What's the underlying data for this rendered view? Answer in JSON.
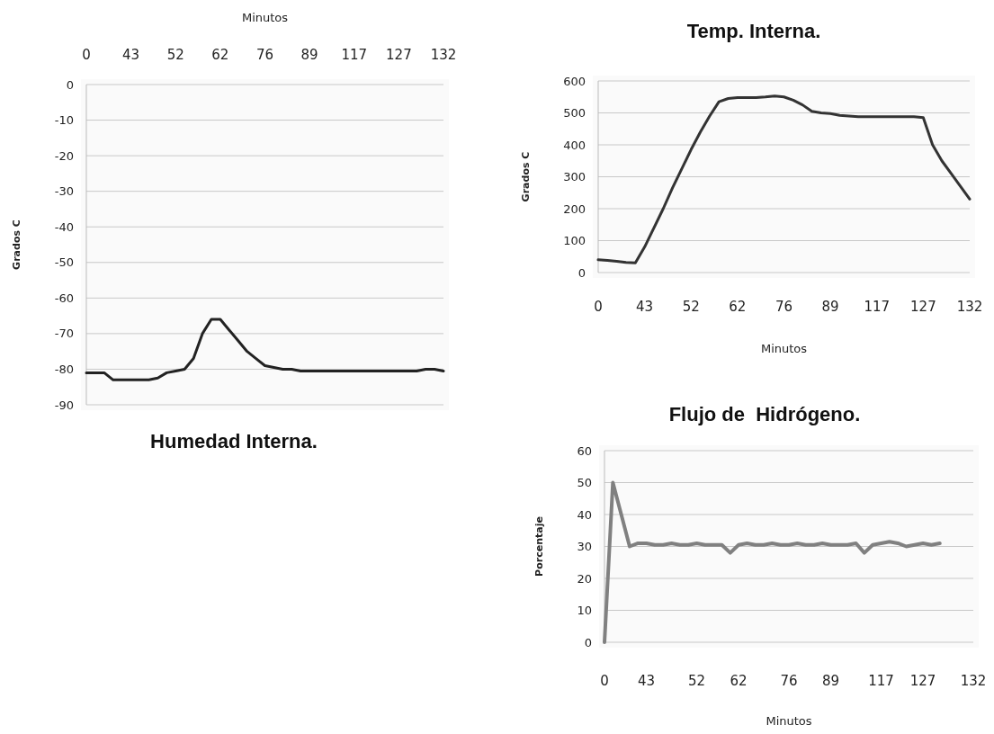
{
  "chart_data": [
    {
      "type": "line",
      "title": "Humedad Interna.",
      "xlabel": "Minutos",
      "ylabel": "Grados C",
      "categories": [
        "0",
        null,
        null,
        null,
        null,
        "43",
        null,
        null,
        null,
        null,
        "52",
        null,
        null,
        null,
        null,
        "62",
        null,
        null,
        null,
        null,
        "76",
        null,
        null,
        null,
        null,
        "89",
        null,
        null,
        null,
        null,
        "117",
        null,
        null,
        null,
        null,
        "127",
        null,
        null,
        null,
        null,
        "132"
      ],
      "series": [
        {
          "color": "#222222",
          "values": [
            -81,
            -81,
            -81,
            -83,
            -83,
            -83,
            -83,
            -83,
            -82.5,
            -81,
            -80.5,
            -80,
            -77,
            -70,
            -66,
            -66,
            -69,
            -72,
            -75,
            -77,
            -79,
            -79.5,
            -80,
            -80,
            -80.5,
            -80.5,
            -80.5,
            -80.5,
            -80.5,
            -80.5,
            -80.5,
            -80.5,
            -80.5,
            -80.5,
            -80.5,
            -80.5,
            -80.5,
            -80.5,
            -80,
            -80,
            -80.5
          ]
        }
      ],
      "ylim": [
        -90,
        0
      ],
      "yticks": [
        0,
        -10,
        -20,
        -30,
        -40,
        -50,
        -60,
        -70,
        -80,
        -90
      ],
      "grid": "y"
    },
    {
      "type": "line",
      "title": "Temp. Interna.",
      "xlabel": "Minutos",
      "ylabel": "Grados C",
      "categories": [
        "0",
        null,
        null,
        null,
        null,
        "43",
        null,
        null,
        null,
        null,
        "52",
        null,
        null,
        null,
        null,
        "62",
        null,
        null,
        null,
        null,
        "76",
        null,
        null,
        null,
        null,
        "89",
        null,
        null,
        null,
        null,
        "117",
        null,
        null,
        null,
        null,
        "127",
        null,
        null,
        null,
        null,
        "132"
      ],
      "series": [
        {
          "color": "#333333",
          "values": [
            40,
            38,
            35,
            32,
            30,
            80,
            140,
            200,
            265,
            325,
            385,
            440,
            490,
            535,
            545,
            548,
            548,
            548,
            550,
            553,
            550,
            540,
            525,
            505,
            500,
            498,
            492,
            490,
            488,
            488,
            488,
            488,
            488,
            488,
            488,
            485,
            400,
            350,
            310,
            270,
            230
          ]
        }
      ],
      "ylim": [
        0,
        600
      ],
      "yticks": [
        0,
        100,
        200,
        300,
        400,
        500,
        600
      ],
      "grid": "y"
    },
    {
      "type": "line",
      "title": "Flujo de  Hidrógeno.",
      "xlabel": "Minutos",
      "ylabel": "Porcentaje",
      "categories": [
        "0",
        null,
        null,
        null,
        null,
        "43",
        null,
        null,
        null,
        null,
        null,
        "52",
        null,
        null,
        null,
        null,
        "62",
        null,
        null,
        null,
        null,
        null,
        "76",
        null,
        null,
        null,
        null,
        "89",
        null,
        null,
        null,
        null,
        null,
        "117",
        null,
        null,
        null,
        null,
        "127",
        null,
        null,
        null,
        null,
        null,
        "132"
      ],
      "series": [
        {
          "color": "#808080",
          "values": [
            0,
            50,
            40,
            30,
            31,
            31,
            30.5,
            30.5,
            31,
            30.5,
            30.5,
            31,
            30.5,
            30.5,
            30.5,
            28,
            30.5,
            31,
            30.5,
            30.5,
            31,
            30.5,
            30.5,
            31,
            30.5,
            30.5,
            31,
            30.5,
            30.5,
            30.5,
            31,
            28,
            30.5,
            31,
            31.5,
            31,
            30,
            30.5,
            31,
            30.5,
            31,
            null,
            null,
            null,
            null
          ]
        }
      ],
      "ylim": [
        0,
        60
      ],
      "yticks": [
        0,
        10,
        20,
        30,
        40,
        50,
        60
      ],
      "grid": "y"
    }
  ]
}
